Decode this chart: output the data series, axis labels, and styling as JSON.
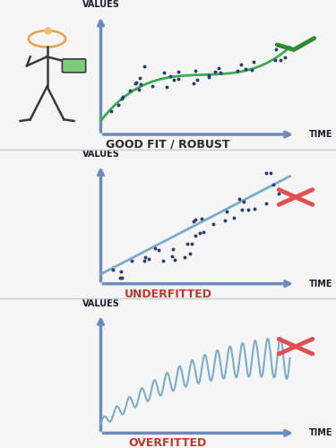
{
  "bg_color": "#f5f5f5",
  "panel_bg": "#ffffff",
  "axis_color": "#6b8cba",
  "axis_lw": 2.5,
  "titles": [
    "GOOD FIT / ROBUST",
    "UNDERFITTED",
    "OVERFITTED"
  ],
  "title_colors": [
    "#2a2a2a",
    "#c0392b",
    "#c0392b"
  ],
  "title_fontsize": 9,
  "values_label": "VALUES",
  "time_label": "TIME",
  "label_fontsize": 7,
  "check_color": "#2e8b2e",
  "cross_color": "#e05050",
  "panel_separator_color": "#cccccc",
  "goodfit_curve_color": "#3aaa55",
  "underfitted_line_color": "#7aaccc",
  "overfitted_line_color": "#7aaccc",
  "dot_color": "#2c3e6e",
  "dot_size": 8
}
